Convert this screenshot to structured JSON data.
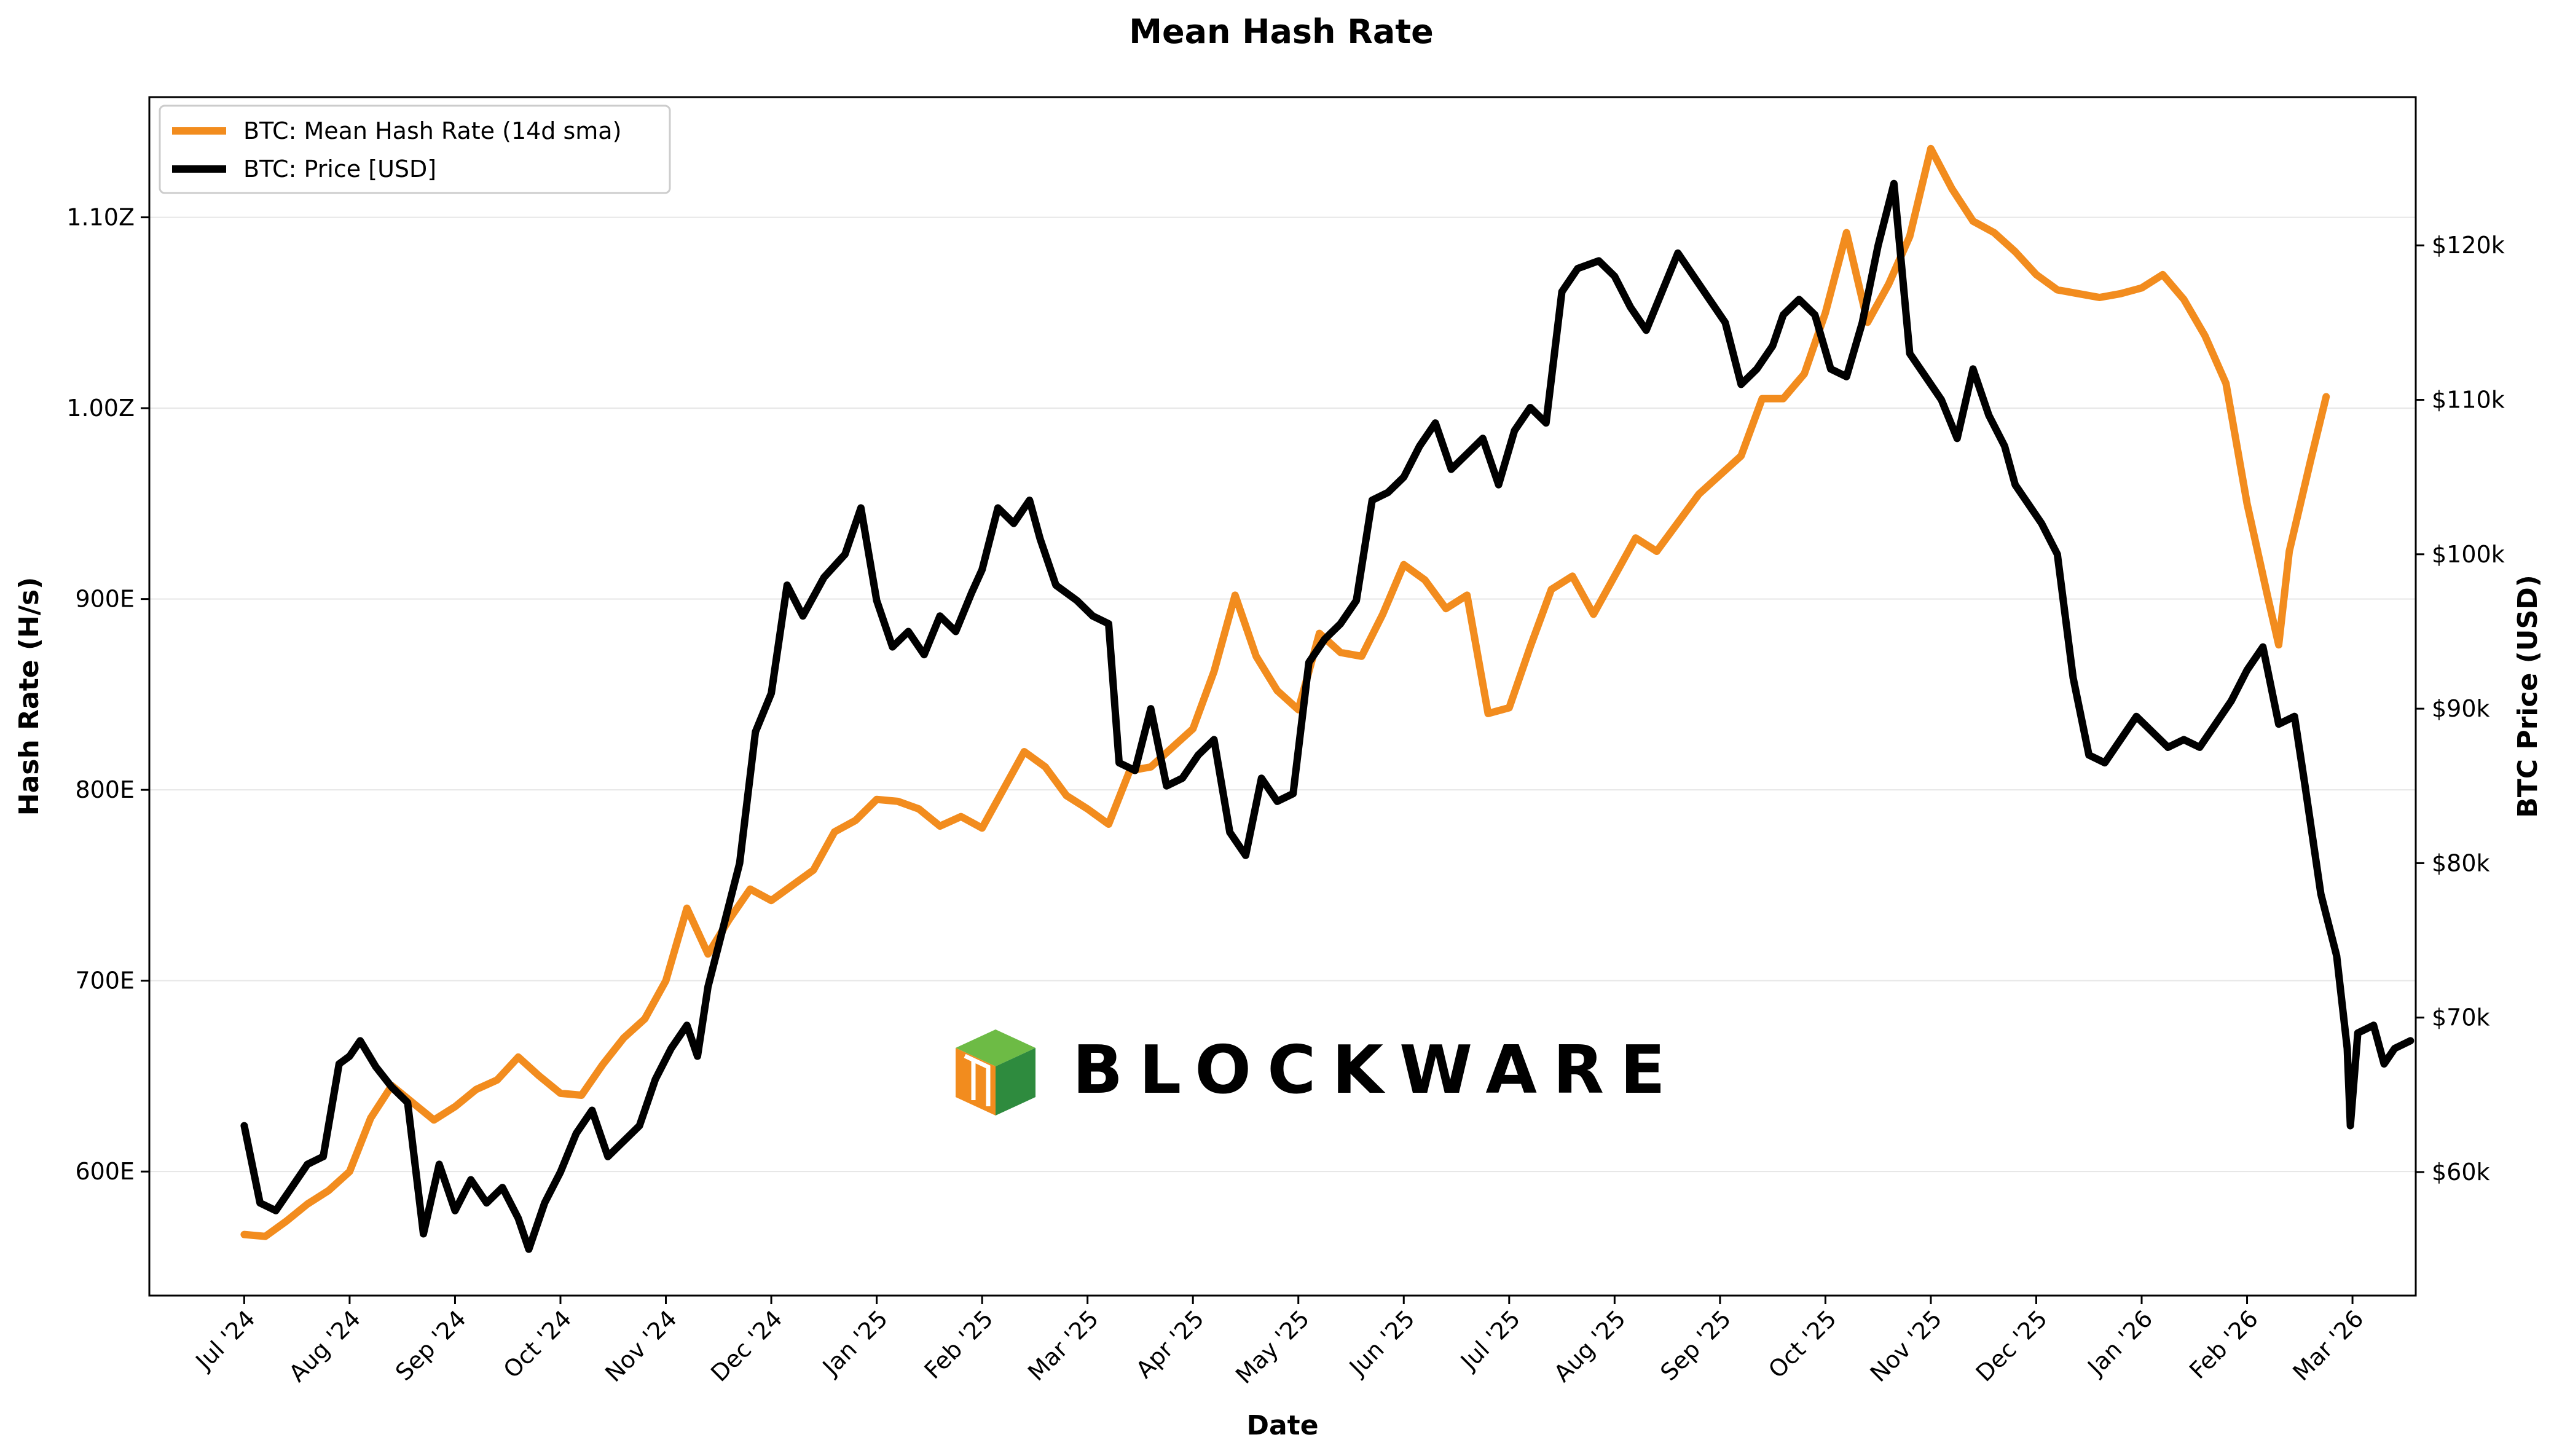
{
  "chart_data": {
    "type": "line",
    "title": "Mean Hash Rate",
    "xlabel": "Date",
    "ylabel_left": "Hash Rate (H/s)",
    "ylabel_right": "BTC Price (USD)",
    "x_ticks": [
      "Jul '24",
      "Aug '24",
      "Sep '24",
      "Oct '24",
      "Nov '24",
      "Dec '24",
      "Jan '25",
      "Feb '25",
      "Mar '25",
      "Apr '25",
      "May '25",
      "Jun '25",
      "Jul '25",
      "Aug '25",
      "Sep '25",
      "Oct '25",
      "Nov '25",
      "Dec '25",
      "Jan '26",
      "Feb '26",
      "Mar '26"
    ],
    "y_left_ticks": [
      {
        "value": 600,
        "label": "600E"
      },
      {
        "value": 700,
        "label": "700E"
      },
      {
        "value": 800,
        "label": "800E"
      },
      {
        "value": 900,
        "label": "900E"
      },
      {
        "value": 1000,
        "label": "1.00Z"
      },
      {
        "value": 1100,
        "label": "1.10Z"
      }
    ],
    "y_right_ticks": [
      {
        "value": 60,
        "label": "$60k"
      },
      {
        "value": 70,
        "label": "$70k"
      },
      {
        "value": 80,
        "label": "$80k"
      },
      {
        "value": 90,
        "label": "$90k"
      },
      {
        "value": 100,
        "label": "$100k"
      },
      {
        "value": 110,
        "label": "$110k"
      },
      {
        "value": 120,
        "label": "$120k"
      }
    ],
    "ylim_left": [
      535,
      1163
    ],
    "ylim_right": [
      52.0,
      129.6
    ],
    "x_range_months": [
      -0.9,
      20.6
    ],
    "grid": "horizontal",
    "legend_position": "top-left",
    "series": [
      {
        "name": "BTC: Mean Hash Rate (14d sma)",
        "axis": "left",
        "color": "#F28C1E",
        "points": [
          [
            0,
            567
          ],
          [
            0.2,
            566
          ],
          [
            0.4,
            574
          ],
          [
            0.6,
            583
          ],
          [
            0.8,
            590
          ],
          [
            1.0,
            600
          ],
          [
            1.2,
            628
          ],
          [
            1.4,
            645
          ],
          [
            1.6,
            636
          ],
          [
            1.8,
            627
          ],
          [
            2.0,
            634
          ],
          [
            2.2,
            643
          ],
          [
            2.4,
            648
          ],
          [
            2.6,
            660
          ],
          [
            2.8,
            650
          ],
          [
            3.0,
            641
          ],
          [
            3.2,
            640
          ],
          [
            3.4,
            656
          ],
          [
            3.6,
            670
          ],
          [
            3.8,
            680
          ],
          [
            4.0,
            700
          ],
          [
            4.2,
            738
          ],
          [
            4.4,
            714
          ],
          [
            4.6,
            732
          ],
          [
            4.8,
            748
          ],
          [
            5.0,
            742
          ],
          [
            5.2,
            750
          ],
          [
            5.4,
            758
          ],
          [
            5.6,
            778
          ],
          [
            5.8,
            784
          ],
          [
            6.0,
            795
          ],
          [
            6.2,
            794
          ],
          [
            6.4,
            790
          ],
          [
            6.6,
            781
          ],
          [
            6.8,
            786
          ],
          [
            7.0,
            780
          ],
          [
            7.2,
            800
          ],
          [
            7.4,
            820
          ],
          [
            7.6,
            812
          ],
          [
            7.8,
            797
          ],
          [
            8.0,
            790
          ],
          [
            8.2,
            782
          ],
          [
            8.4,
            810
          ],
          [
            8.6,
            812
          ],
          [
            8.8,
            822
          ],
          [
            9.0,
            832
          ],
          [
            9.2,
            862
          ],
          [
            9.4,
            902
          ],
          [
            9.6,
            870
          ],
          [
            9.8,
            852
          ],
          [
            10.0,
            842
          ],
          [
            10.2,
            882
          ],
          [
            10.4,
            872
          ],
          [
            10.6,
            870
          ],
          [
            10.8,
            892
          ],
          [
            11.0,
            918
          ],
          [
            11.2,
            910
          ],
          [
            11.4,
            895
          ],
          [
            11.6,
            902
          ],
          [
            11.8,
            840
          ],
          [
            12.0,
            843
          ],
          [
            12.2,
            875
          ],
          [
            12.4,
            905
          ],
          [
            12.6,
            912
          ],
          [
            12.8,
            892
          ],
          [
            13.0,
            912
          ],
          [
            13.2,
            932
          ],
          [
            13.4,
            925
          ],
          [
            13.6,
            940
          ],
          [
            13.8,
            955
          ],
          [
            14.0,
            965
          ],
          [
            14.2,
            975
          ],
          [
            14.4,
            1005
          ],
          [
            14.6,
            1005
          ],
          [
            14.8,
            1018
          ],
          [
            15.0,
            1050
          ],
          [
            15.2,
            1092
          ],
          [
            15.4,
            1045
          ],
          [
            15.6,
            1065
          ],
          [
            15.8,
            1090
          ],
          [
            16.0,
            1136
          ],
          [
            16.2,
            1115
          ],
          [
            16.4,
            1098
          ],
          [
            16.6,
            1092
          ],
          [
            16.8,
            1082
          ],
          [
            17.0,
            1070
          ],
          [
            17.2,
            1062
          ],
          [
            17.4,
            1060
          ],
          [
            17.6,
            1058
          ],
          [
            17.8,
            1060
          ],
          [
            18.0,
            1063
          ],
          [
            18.2,
            1070
          ],
          [
            18.4,
            1057
          ],
          [
            18.6,
            1038
          ],
          [
            18.8,
            1013
          ],
          [
            19.0,
            950
          ],
          [
            19.2,
            900
          ],
          [
            19.3,
            876
          ],
          [
            19.4,
            925
          ],
          [
            19.6,
            972
          ],
          [
            19.75,
            1006
          ]
        ]
      },
      {
        "name": "BTC: Price [USD]",
        "axis": "right",
        "color": "#000000",
        "points": [
          [
            0,
            63.0
          ],
          [
            0.15,
            58.0
          ],
          [
            0.3,
            57.5
          ],
          [
            0.45,
            59.0
          ],
          [
            0.6,
            60.5
          ],
          [
            0.75,
            61.0
          ],
          [
            0.9,
            67.0
          ],
          [
            1.0,
            67.5
          ],
          [
            1.1,
            68.5
          ],
          [
            1.25,
            66.8
          ],
          [
            1.4,
            65.5
          ],
          [
            1.55,
            64.5
          ],
          [
            1.7,
            56.0
          ],
          [
            1.85,
            60.5
          ],
          [
            2.0,
            57.5
          ],
          [
            2.15,
            59.5
          ],
          [
            2.3,
            58.0
          ],
          [
            2.45,
            59.0
          ],
          [
            2.6,
            57.0
          ],
          [
            2.7,
            55.0
          ],
          [
            2.85,
            58.0
          ],
          [
            3.0,
            60.0
          ],
          [
            3.15,
            62.5
          ],
          [
            3.3,
            64.0
          ],
          [
            3.45,
            61.0
          ],
          [
            3.6,
            62.0
          ],
          [
            3.75,
            63.0
          ],
          [
            3.9,
            66.0
          ],
          [
            4.05,
            68.0
          ],
          [
            4.2,
            69.5
          ],
          [
            4.3,
            67.5
          ],
          [
            4.4,
            72.0
          ],
          [
            4.55,
            76.0
          ],
          [
            4.7,
            80.0
          ],
          [
            4.85,
            88.5
          ],
          [
            5.0,
            91.0
          ],
          [
            5.15,
            98.0
          ],
          [
            5.3,
            96.0
          ],
          [
            5.5,
            98.5
          ],
          [
            5.7,
            100.0
          ],
          [
            5.85,
            103.0
          ],
          [
            6.0,
            97.0
          ],
          [
            6.15,
            94.0
          ],
          [
            6.3,
            95.0
          ],
          [
            6.45,
            93.5
          ],
          [
            6.6,
            96.0
          ],
          [
            6.75,
            95.0
          ],
          [
            6.9,
            97.5
          ],
          [
            7.0,
            99.0
          ],
          [
            7.15,
            103.0
          ],
          [
            7.3,
            102.0
          ],
          [
            7.45,
            103.5
          ],
          [
            7.55,
            101.0
          ],
          [
            7.7,
            98.0
          ],
          [
            7.9,
            97.0
          ],
          [
            8.05,
            96.0
          ],
          [
            8.2,
            95.5
          ],
          [
            8.3,
            86.5
          ],
          [
            8.45,
            86.0
          ],
          [
            8.6,
            90.0
          ],
          [
            8.75,
            85.0
          ],
          [
            8.9,
            85.5
          ],
          [
            9.05,
            87.0
          ],
          [
            9.2,
            88.0
          ],
          [
            9.35,
            82.0
          ],
          [
            9.5,
            80.5
          ],
          [
            9.65,
            85.5
          ],
          [
            9.8,
            84.0
          ],
          [
            9.95,
            84.5
          ],
          [
            10.1,
            93.0
          ],
          [
            10.25,
            94.5
          ],
          [
            10.4,
            95.5
          ],
          [
            10.55,
            97.0
          ],
          [
            10.7,
            103.5
          ],
          [
            10.85,
            104.0
          ],
          [
            11.0,
            105.0
          ],
          [
            11.15,
            107.0
          ],
          [
            11.3,
            108.5
          ],
          [
            11.45,
            105.5
          ],
          [
            11.6,
            106.5
          ],
          [
            11.75,
            107.5
          ],
          [
            11.9,
            104.5
          ],
          [
            12.05,
            108.0
          ],
          [
            12.2,
            109.5
          ],
          [
            12.35,
            108.5
          ],
          [
            12.5,
            117.0
          ],
          [
            12.65,
            118.5
          ],
          [
            12.85,
            119.0
          ],
          [
            13.0,
            118.0
          ],
          [
            13.15,
            116.0
          ],
          [
            13.3,
            114.5
          ],
          [
            13.45,
            117.0
          ],
          [
            13.6,
            119.5
          ],
          [
            13.75,
            118.0
          ],
          [
            13.9,
            116.5
          ],
          [
            14.05,
            115.0
          ],
          [
            14.2,
            111.0
          ],
          [
            14.35,
            112.0
          ],
          [
            14.5,
            113.5
          ],
          [
            14.6,
            115.5
          ],
          [
            14.75,
            116.5
          ],
          [
            14.9,
            115.5
          ],
          [
            15.05,
            112.0
          ],
          [
            15.2,
            111.5
          ],
          [
            15.35,
            115.0
          ],
          [
            15.5,
            120.0
          ],
          [
            15.65,
            124.0
          ],
          [
            15.8,
            113.0
          ],
          [
            15.95,
            111.5
          ],
          [
            16.1,
            110.0
          ],
          [
            16.25,
            107.5
          ],
          [
            16.4,
            112.0
          ],
          [
            16.55,
            109.0
          ],
          [
            16.7,
            107.0
          ],
          [
            16.8,
            104.5
          ],
          [
            16.95,
            103.0
          ],
          [
            17.05,
            102.0
          ],
          [
            17.2,
            100.0
          ],
          [
            17.35,
            92.0
          ],
          [
            17.5,
            87.0
          ],
          [
            17.65,
            86.5
          ],
          [
            17.8,
            88.0
          ],
          [
            17.95,
            89.5
          ],
          [
            18.1,
            88.5
          ],
          [
            18.25,
            87.5
          ],
          [
            18.4,
            88.0
          ],
          [
            18.55,
            87.5
          ],
          [
            18.7,
            89.0
          ],
          [
            18.85,
            90.5
          ],
          [
            19.0,
            92.5
          ],
          [
            19.15,
            94.0
          ],
          [
            19.3,
            89.0
          ],
          [
            19.45,
            89.5
          ],
          [
            19.55,
            85.0
          ],
          [
            19.7,
            78.0
          ],
          [
            19.85,
            74.0
          ],
          [
            19.95,
            68.0
          ],
          [
            19.98,
            63.0
          ],
          [
            20.05,
            69.0
          ],
          [
            20.2,
            69.5
          ],
          [
            20.3,
            67.0
          ],
          [
            20.4,
            68.0
          ],
          [
            20.55,
            68.5
          ]
        ]
      }
    ]
  },
  "watermark": {
    "text": "BLOCKWARE",
    "logo_colors": [
      "#2E8B3E",
      "#6DBB45",
      "#F28C1E"
    ]
  }
}
